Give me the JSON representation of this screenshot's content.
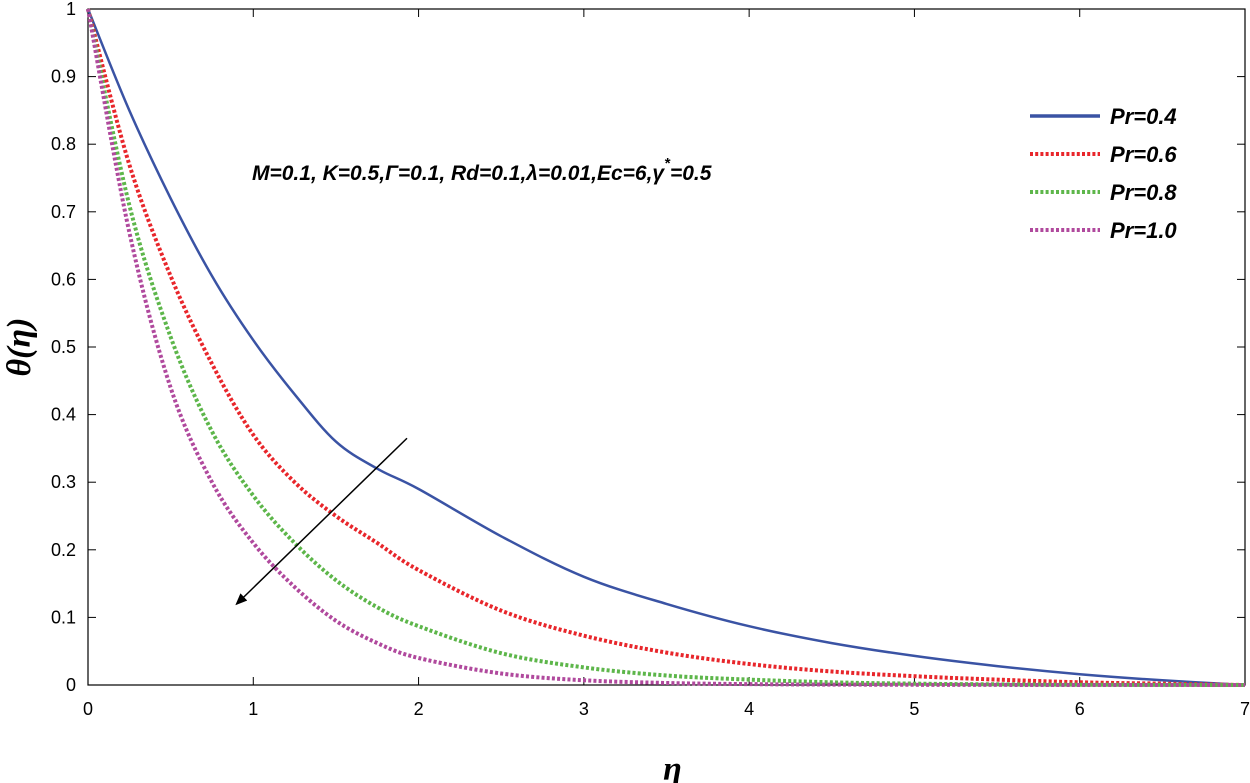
{
  "chart_data": {
    "type": "line",
    "xlabel": "η",
    "ylabel": "θ(η)",
    "xlim": [
      0,
      7
    ],
    "ylim": [
      0,
      1
    ],
    "xticks": [
      "0",
      "1",
      "2",
      "3",
      "4",
      "5",
      "6",
      "7"
    ],
    "yticks": [
      "0",
      "0.1",
      "0.2",
      "0.3",
      "0.4",
      "0.5",
      "0.6",
      "0.7",
      "0.8",
      "0.9",
      "1"
    ],
    "grid": false,
    "legend_position": "top-right",
    "annotation": "M=0.1, K=0.5,Γ=0.1, Rd=0.1,λ=0.01,Ec=6,γ*=0.5",
    "annotation_parts": {
      "before_superscript": "M=0.1, K=0.5,Γ=0.1, Rd=0.1,λ=0.01,Ec=6,γ",
      "superscript": "*",
      "after_superscript": "=0.5"
    },
    "arrow": {
      "from": [
        1.93,
        0.365
      ],
      "to": [
        0.9,
        0.12
      ],
      "meaning": "increasing Pr"
    },
    "series": [
      {
        "name": "Pr=0.4",
        "color": "#3a53a4",
        "style": "solid",
        "x": [
          0,
          0.25,
          0.5,
          0.75,
          1,
          1.25,
          1.5,
          1.75,
          2,
          2.5,
          3,
          3.5,
          4,
          4.5,
          5,
          5.5,
          6,
          6.5,
          7
        ],
        "y": [
          1,
          0.85,
          0.72,
          0.605,
          0.51,
          0.43,
          0.36,
          0.32,
          0.29,
          0.22,
          0.16,
          0.12,
          0.087,
          0.062,
          0.043,
          0.028,
          0.016,
          0.007,
          0.0
        ]
      },
      {
        "name": "Pr=0.6",
        "color": "#e8262b",
        "style": "dotted",
        "x": [
          0,
          0.25,
          0.5,
          0.75,
          1,
          1.25,
          1.5,
          1.75,
          2,
          2.5,
          3,
          3.5,
          4,
          4.5,
          5,
          5.5,
          6,
          6.5,
          7
        ],
        "y": [
          1,
          0.77,
          0.605,
          0.475,
          0.37,
          0.3,
          0.25,
          0.21,
          0.17,
          0.11,
          0.073,
          0.048,
          0.031,
          0.02,
          0.013,
          0.008,
          0.004,
          0.002,
          0.0
        ]
      },
      {
        "name": "Pr=0.8",
        "color": "#5db64a",
        "style": "dotted",
        "x": [
          0,
          0.25,
          0.5,
          0.75,
          1,
          1.25,
          1.5,
          1.75,
          2,
          2.5,
          3,
          3.5,
          4,
          4.5,
          5,
          5.5,
          6,
          6.5,
          7
        ],
        "y": [
          1,
          0.71,
          0.515,
          0.375,
          0.28,
          0.21,
          0.155,
          0.115,
          0.087,
          0.047,
          0.026,
          0.014,
          0.008,
          0.004,
          0.002,
          0.001,
          0.0005,
          0.0002,
          0.0
        ]
      },
      {
        "name": "Pr=1.0",
        "color": "#b0499d",
        "style": "dotted",
        "x": [
          0,
          0.25,
          0.5,
          0.75,
          1,
          1.25,
          1.5,
          1.75,
          2,
          2.5,
          3,
          3.5,
          4,
          4.5,
          5,
          5.5,
          6,
          6.5,
          7
        ],
        "y": [
          1,
          0.67,
          0.44,
          0.3,
          0.21,
          0.145,
          0.095,
          0.062,
          0.04,
          0.017,
          0.007,
          0.003,
          0.0013,
          0.0006,
          0.0003,
          0.0001,
          0.0,
          0.0,
          0.0
        ]
      }
    ]
  }
}
